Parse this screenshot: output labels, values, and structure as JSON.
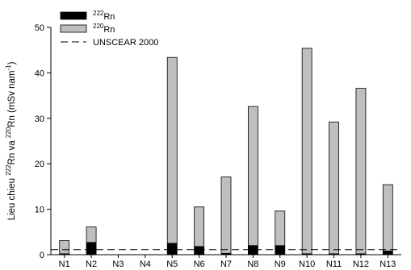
{
  "chart_data": {
    "type": "bar",
    "stacked": true,
    "title": "",
    "xlabel": "",
    "ylabel": {
      "parts": [
        {
          "text": "Lieu chieu "
        },
        {
          "text": "222",
          "sup": true
        },
        {
          "text": "Rn va "
        },
        {
          "text": "220",
          "sup": true
        },
        {
          "text": "Rn (mSv nam"
        },
        {
          "text": "-1",
          "sup": true
        },
        {
          "text": ")"
        }
      ]
    },
    "ylim": [
      0,
      50
    ],
    "yticks": [
      0,
      10,
      20,
      30,
      40,
      50
    ],
    "categories": [
      "N1",
      "N2",
      "N3",
      "N4",
      "N5",
      "N6",
      "N7",
      "N8",
      "N9",
      "N10",
      "N11",
      "N12",
      "N13"
    ],
    "series": [
      {
        "name_mass": "222",
        "name_symbol": "Rn",
        "color": "#000000",
        "values": [
          0.2,
          2.7,
          0,
          0,
          2.5,
          1.8,
          0.3,
          2.0,
          2.0,
          0.2,
          0.2,
          0.2,
          0.8
        ]
      },
      {
        "name_mass": "220",
        "name_symbol": "Rn",
        "color": "#bfbfbf",
        "values": [
          2.9,
          3.4,
          0,
          0,
          40.9,
          8.7,
          16.8,
          30.6,
          7.6,
          45.2,
          29.0,
          36.4,
          14.6
        ]
      }
    ],
    "reference_line": {
      "name": "UNSCEAR 2000",
      "value": 1.1,
      "style": "dashed"
    },
    "legend": {
      "position": "top-left"
    },
    "grid": false
  }
}
